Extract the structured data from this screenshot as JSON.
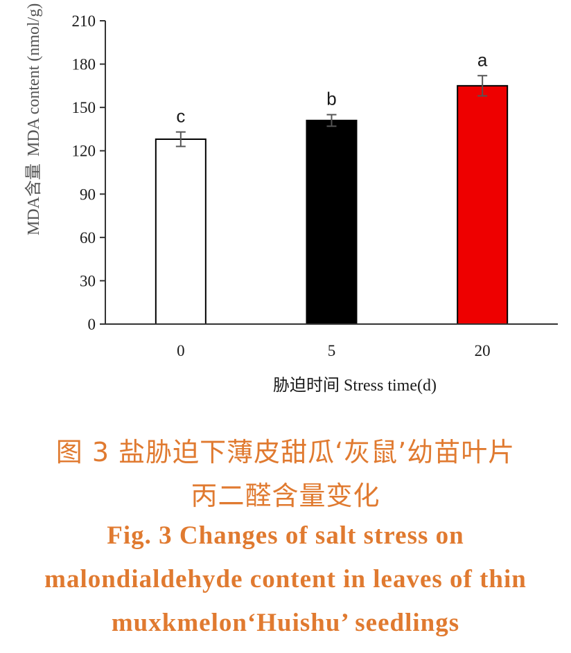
{
  "chart_data": {
    "type": "bar",
    "categories": [
      "0",
      "5",
      "20"
    ],
    "values": [
      128,
      141,
      165
    ],
    "errors": [
      5,
      4,
      7
    ],
    "significance_letters": [
      "c",
      "b",
      "a"
    ],
    "bar_colors": [
      "#ffffff",
      "#000000",
      "#ee0000"
    ],
    "ylim": [
      0,
      210
    ],
    "yticks": [
      "0",
      "30",
      "60",
      "90",
      "120",
      "150",
      "180",
      "210"
    ],
    "xlabel": "胁迫时间  Stress time(d)",
    "ylabel_zh": "MDA含量",
    "ylabel_en": "MDA content  (nmol/g)"
  },
  "caption": {
    "zh_line1": "图 3    盐胁迫下薄皮甜瓜‘灰鼠’幼苗叶片",
    "zh_line2": "丙二醛含量变化",
    "en_line1": "Fig. 3    Changes of salt stress on",
    "en_line2": "malondialdehyde content in leaves of thin",
    "en_line3": "muxkmelon‘Huishu’ seedlings",
    "color": "#e07a30"
  }
}
